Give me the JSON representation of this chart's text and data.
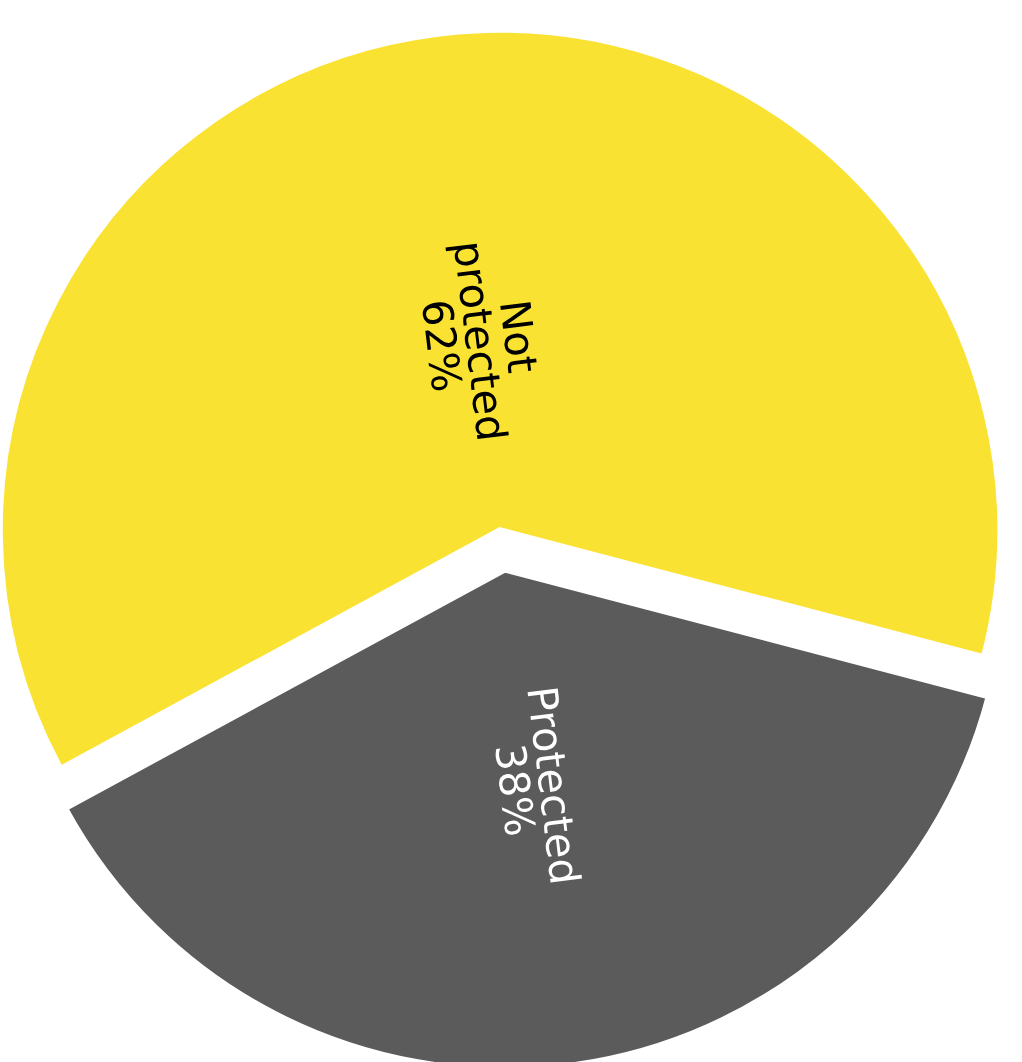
{
  "chart_data": {
    "type": "pie",
    "categories": [
      "Not protected",
      "Protected"
    ],
    "values": [
      62,
      38
    ],
    "value_labels": [
      "62%",
      "38%"
    ],
    "colors": [
      "#f9e231",
      "#5b5b5b"
    ]
  }
}
